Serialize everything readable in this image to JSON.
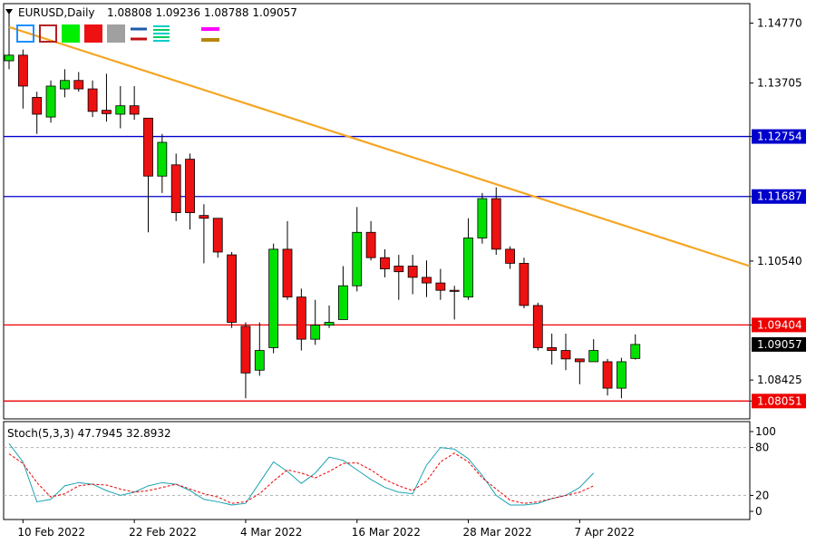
{
  "header": {
    "symbol": "EURUSD,Daily",
    "ohlc": "1.08808 1.09236 1.08788 1.09057"
  },
  "toolbar": {
    "buttons": [
      {
        "name": "blue-outline-box-icon",
        "fill": "none",
        "stroke": "#1e90ff"
      },
      {
        "name": "red-outline-box-icon",
        "fill": "none",
        "stroke": "#b22222"
      },
      {
        "name": "green-box-icon",
        "fill": "#00ee00",
        "stroke": "#00ee00"
      },
      {
        "name": "red-box-icon",
        "fill": "#ee1111",
        "stroke": "#ee1111"
      },
      {
        "name": "gray-box-icon",
        "fill": "#a0a0a0",
        "stroke": "#a0a0a0"
      },
      {
        "name": "blue-red-lines-icon",
        "type": "lines",
        "colors": [
          "#1e5aa8",
          "#c01010"
        ]
      },
      {
        "name": "multi-lines-icon",
        "type": "multilines",
        "colors": [
          "#00cccc",
          "#00cc66"
        ]
      },
      {
        "name": "magenta-line-icon",
        "type": "line",
        "colors": [
          "#ff00ff"
        ]
      },
      {
        "name": "olive-line-icon",
        "type": "line",
        "colors": [
          "#b8860b"
        ]
      }
    ]
  },
  "colors": {
    "bull": "#00e000",
    "bear": "#ee1111",
    "wick": "#000000",
    "trendline": "#f5a623",
    "resistance": "#0000cc",
    "support": "#ee0000",
    "stoch_main": "#1aa3b3",
    "stoch_signal": "#ee0000",
    "label_blue_bg": "#0000cc",
    "label_red_bg": "#ee0000",
    "label_black_bg": "#000000"
  },
  "price_axis": {
    "ticks": [
      "1.14770",
      "1.13705",
      "1.12754",
      "1.11687",
      "1.10540",
      "1.09404",
      "1.08425",
      "1.08051"
    ],
    "labels": [
      {
        "text": "1.12754",
        "style": "blue"
      },
      {
        "text": "1.11687",
        "style": "blue"
      },
      {
        "text": "1.09404",
        "style": "red"
      },
      {
        "text": "1.09057",
        "style": "black"
      },
      {
        "text": "1.08051",
        "style": "red"
      }
    ]
  },
  "time_axis": {
    "labels": [
      "10 Feb 2022",
      "22 Feb 2022",
      "4 Mar 2022",
      "16 Mar 2022",
      "28 Mar 2022",
      "7 Apr 2022"
    ]
  },
  "stochastic": {
    "title": "Stoch(5,3,3) 47.7945 32.8932",
    "levels": [
      "100",
      "80",
      "20",
      "0"
    ]
  },
  "chart_data": {
    "type": "candlestick",
    "title": "EURUSD,Daily",
    "ylim": [
      1.0775,
      1.151
    ],
    "horizontal_levels": [
      {
        "price": 1.12754,
        "color": "blue"
      },
      {
        "price": 1.11687,
        "color": "blue"
      },
      {
        "price": 1.09404,
        "color": "red"
      },
      {
        "price": 1.08051,
        "color": "red"
      }
    ],
    "trendline": {
      "from": {
        "date": "9 Feb 2022",
        "price": 1.147
      },
      "to": {
        "date": "21 Apr 2022",
        "price": 1.1045
      }
    },
    "candles": [
      {
        "date": "9 Feb 2022",
        "o": 1.141,
        "h": 1.1495,
        "l": 1.1395,
        "c": 1.142
      },
      {
        "date": "10 Feb 2022",
        "o": 1.142,
        "h": 1.143,
        "l": 1.1325,
        "c": 1.1365
      },
      {
        "date": "11 Feb 2022",
        "o": 1.1345,
        "h": 1.1355,
        "l": 1.128,
        "c": 1.1315
      },
      {
        "date": "14 Feb 2022",
        "o": 1.131,
        "h": 1.1375,
        "l": 1.13,
        "c": 1.1365
      },
      {
        "date": "15 Feb 2022",
        "o": 1.136,
        "h": 1.1395,
        "l": 1.1345,
        "c": 1.1375
      },
      {
        "date": "16 Feb 2022",
        "o": 1.1375,
        "h": 1.139,
        "l": 1.1355,
        "c": 1.136
      },
      {
        "date": "17 Feb 2022",
        "o": 1.136,
        "h": 1.1375,
        "l": 1.131,
        "c": 1.132
      },
      {
        "date": "18 Feb 2022",
        "o": 1.1322,
        "h": 1.1387,
        "l": 1.1302,
        "c": 1.1316
      },
      {
        "date": "21 Feb 2022",
        "o": 1.1315,
        "h": 1.1365,
        "l": 1.129,
        "c": 1.133
      },
      {
        "date": "22 Feb 2022",
        "o": 1.133,
        "h": 1.1365,
        "l": 1.1305,
        "c": 1.1315
      },
      {
        "date": "23 Feb 2022",
        "o": 1.1308,
        "h": 1.1308,
        "l": 1.1105,
        "c": 1.1205
      },
      {
        "date": "24 Feb 2022",
        "o": 1.1205,
        "h": 1.128,
        "l": 1.1175,
        "c": 1.1265
      },
      {
        "date": "25 Feb 2022",
        "o": 1.1225,
        "h": 1.1245,
        "l": 1.1125,
        "c": 1.114
      },
      {
        "date": "28 Feb 2022",
        "o": 1.1235,
        "h": 1.1245,
        "l": 1.111,
        "c": 1.114
      },
      {
        "date": "1 Mar 2022",
        "o": 1.1135,
        "h": 1.1155,
        "l": 1.105,
        "c": 1.113
      },
      {
        "date": "2 Mar 2022",
        "o": 1.113,
        "h": 1.113,
        "l": 1.106,
        "c": 1.107
      },
      {
        "date": "3 Mar 2022",
        "o": 1.1065,
        "h": 1.107,
        "l": 1.0935,
        "c": 1.0945
      },
      {
        "date": "4 Mar 2022",
        "o": 1.0938,
        "h": 1.0945,
        "l": 1.081,
        "c": 1.0855
      },
      {
        "date": "7 Mar 2022",
        "o": 1.086,
        "h": 1.0945,
        "l": 1.085,
        "c": 1.0895
      },
      {
        "date": "8 Mar 2022",
        "o": 1.09,
        "h": 1.1085,
        "l": 1.089,
        "c": 1.1075
      },
      {
        "date": "9 Mar 2022",
        "o": 1.1075,
        "h": 1.1125,
        "l": 1.0985,
        "c": 1.099
      },
      {
        "date": "10 Mar 2022",
        "o": 1.099,
        "h": 1.1005,
        "l": 1.0895,
        "c": 1.0915
      },
      {
        "date": "11 Mar 2022",
        "o": 1.0915,
        "h": 1.0985,
        "l": 1.0905,
        "c": 1.094
      },
      {
        "date": "14 Mar 2022",
        "o": 1.094,
        "h": 1.0975,
        "l": 1.0935,
        "c": 1.0945
      },
      {
        "date": "15 Mar 2022",
        "o": 1.095,
        "h": 1.1045,
        "l": 1.095,
        "c": 1.101
      },
      {
        "date": "16 Mar 2022",
        "o": 1.101,
        "h": 1.115,
        "l": 1.1,
        "c": 1.1105
      },
      {
        "date": "17 Mar 2022",
        "o": 1.1105,
        "h": 1.1125,
        "l": 1.1055,
        "c": 1.106
      },
      {
        "date": "18 Mar 2022",
        "o": 1.106,
        "h": 1.1075,
        "l": 1.1025,
        "c": 1.104
      },
      {
        "date": "21 Mar 2022",
        "o": 1.1045,
        "h": 1.1065,
        "l": 1.0985,
        "c": 1.1035
      },
      {
        "date": "22 Mar 2022",
        "o": 1.1045,
        "h": 1.1065,
        "l": 1.0995,
        "c": 1.1025
      },
      {
        "date": "23 Mar 2022",
        "o": 1.1025,
        "h": 1.1055,
        "l": 1.099,
        "c": 1.1015
      },
      {
        "date": "24 Mar 2022",
        "o": 1.1015,
        "h": 1.104,
        "l": 1.0985,
        "c": 1.1002
      },
      {
        "date": "25 Mar 2022",
        "o": 1.1002,
        "h": 1.101,
        "l": 1.095,
        "c": 1.1
      },
      {
        "date": "28 Mar 2022",
        "o": 1.099,
        "h": 1.113,
        "l": 1.0985,
        "c": 1.1095
      },
      {
        "date": "29 Mar 2022",
        "o": 1.1095,
        "h": 1.1175,
        "l": 1.1085,
        "c": 1.1165
      },
      {
        "date": "30 Mar 2022",
        "o": 1.1165,
        "h": 1.1185,
        "l": 1.1065,
        "c": 1.1075
      },
      {
        "date": "31 Mar 2022",
        "o": 1.1075,
        "h": 1.108,
        "l": 1.104,
        "c": 1.105
      },
      {
        "date": "1 Apr 2022",
        "o": 1.105,
        "h": 1.106,
        "l": 1.097,
        "c": 1.0975
      },
      {
        "date": "4 Apr 2022",
        "o": 1.0975,
        "h": 1.098,
        "l": 1.0895,
        "c": 1.09
      },
      {
        "date": "5 Apr 2022",
        "o": 1.09,
        "h": 1.0925,
        "l": 1.087,
        "c": 1.0895
      },
      {
        "date": "6 Apr 2022",
        "o": 1.0895,
        "h": 1.0925,
        "l": 1.086,
        "c": 1.088
      },
      {
        "date": "7 Apr 2022",
        "o": 1.088,
        "h": 1.088,
        "l": 1.0835,
        "c": 1.0875
      },
      {
        "date": "8 Apr 2022",
        "o": 1.0875,
        "h": 1.0915,
        "l": 1.0875,
        "c": 1.0895
      },
      {
        "date": "11 Apr 2022",
        "o": 1.0875,
        "h": 1.088,
        "l": 1.0815,
        "c": 1.0828
      },
      {
        "date": "12 Apr 2022",
        "o": 1.0828,
        "h": 1.0882,
        "l": 1.081,
        "c": 1.0875
      },
      {
        "date": "13 Apr 2022",
        "o": 1.08808,
        "h": 1.09236,
        "l": 1.08788,
        "c": 1.09057
      }
    ],
    "stochastic": {
      "ylim": [
        0,
        100
      ],
      "levels": [
        20,
        80
      ],
      "main": [
        85,
        62,
        12,
        15,
        32,
        36,
        34,
        26,
        20,
        24,
        32,
        36,
        34,
        26,
        15,
        12,
        8,
        10,
        36,
        62,
        50,
        35,
        48,
        68,
        64,
        52,
        40,
        30,
        24,
        22,
        58,
        80,
        78,
        66,
        45,
        20,
        8,
        8,
        10,
        16,
        20,
        30,
        48
      ],
      "signal": [
        72,
        60,
        36,
        18,
        22,
        32,
        34,
        33,
        28,
        24,
        26,
        30,
        34,
        28,
        22,
        18,
        10,
        12,
        22,
        38,
        52,
        48,
        42,
        50,
        60,
        61,
        52,
        40,
        32,
        26,
        38,
        62,
        73,
        62,
        42,
        28,
        14,
        10,
        12,
        16,
        20,
        24,
        32
      ]
    }
  }
}
